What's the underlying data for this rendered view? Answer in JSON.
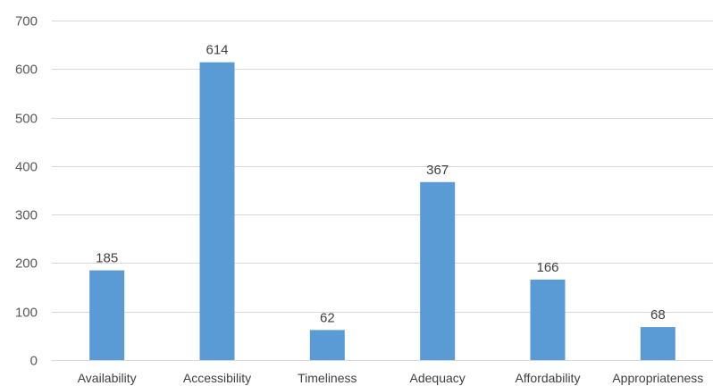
{
  "chart_data": {
    "type": "bar",
    "title": "",
    "xlabel": "",
    "ylabel": "",
    "categories": [
      "Availability",
      "Accessibility",
      "Timeliness",
      "Adequacy",
      "Affordability",
      "Appropriateness"
    ],
    "values": [
      185,
      614,
      62,
      367,
      166,
      68
    ],
    "data_labels": [
      "185",
      "614",
      "62",
      "367",
      "166",
      "68"
    ],
    "ylim": [
      0,
      700
    ],
    "yticks": [
      0,
      100,
      200,
      300,
      400,
      500,
      600,
      700
    ],
    "ytick_labels": [
      "0",
      "100",
      "200",
      "300",
      "400",
      "500",
      "600",
      "700"
    ],
    "grid": true,
    "legend": "none",
    "bar_color": "#5B9BD5",
    "grid_color": "#D9D9D9"
  }
}
